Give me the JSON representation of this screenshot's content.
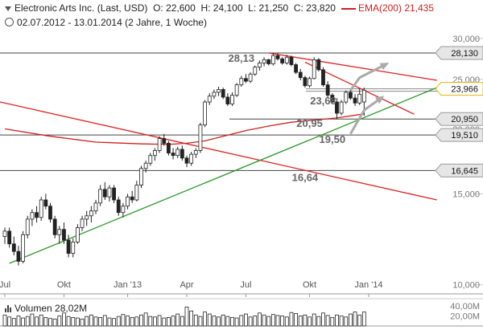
{
  "header": {
    "instrument": "Electronic Arts Inc. (Last, USD)",
    "open": "O: 22,600",
    "high": "H: 24,100",
    "low": "L: 21,250",
    "close": "C: 23,820",
    "ema_label": "EMA(200)",
    "ema_value": "21,435",
    "range": "02.07.2012 - 13.01.2014 (2 Jahre, 1 Woche)"
  },
  "volume": {
    "label": "Volumen",
    "value": "28,02M"
  },
  "chart_data": {
    "type": "candlestick",
    "y_scale": "log",
    "ylim": [
      9.6,
      32.0
    ],
    "y_ticks": [
      {
        "value": 10,
        "label": "10,000"
      },
      {
        "value": 15,
        "label": "15,000"
      },
      {
        "value": 20,
        "label": "20,000"
      },
      {
        "value": 25,
        "label": "25,000"
      },
      {
        "value": 30,
        "label": "30,000"
      }
    ],
    "x_ticks": [
      {
        "label": "Jul",
        "i": 0
      },
      {
        "label": "Okt",
        "i": 13
      },
      {
        "label": "Jan '13",
        "i": 27
      },
      {
        "label": "Apr",
        "i": 40
      },
      {
        "label": "Jul",
        "i": 53
      },
      {
        "label": "Okt",
        "i": 67
      },
      {
        "label": "Jan '14",
        "i": 80
      }
    ],
    "candles": [
      [
        12.4,
        12.9,
        12.0,
        12.7
      ],
      [
        12.7,
        12.9,
        11.8,
        12.0
      ],
      [
        12.0,
        12.4,
        11.4,
        11.6
      ],
      [
        11.6,
        11.9,
        10.9,
        11.1
      ],
      [
        11.1,
        12.7,
        11.0,
        12.5
      ],
      [
        12.5,
        13.6,
        12.3,
        13.4
      ],
      [
        13.4,
        14.0,
        13.0,
        13.8
      ],
      [
        13.8,
        14.2,
        13.2,
        13.5
      ],
      [
        13.5,
        14.8,
        13.3,
        14.6
      ],
      [
        14.6,
        15.0,
        14.0,
        14.2
      ],
      [
        14.2,
        14.4,
        13.2,
        13.4
      ],
      [
        13.4,
        13.6,
        12.3,
        12.5
      ],
      [
        12.5,
        13.0,
        12.0,
        12.8
      ],
      [
        12.8,
        13.2,
        12.0,
        12.2
      ],
      [
        12.2,
        12.5,
        11.3,
        11.5
      ],
      [
        11.5,
        12.3,
        11.3,
        12.1
      ],
      [
        12.1,
        13.1,
        12.0,
        12.9
      ],
      [
        12.9,
        13.6,
        12.7,
        13.4
      ],
      [
        13.4,
        13.9,
        13.0,
        13.6
      ],
      [
        13.6,
        14.2,
        13.2,
        13.9
      ],
      [
        13.9,
        14.6,
        13.7,
        14.4
      ],
      [
        14.4,
        15.6,
        14.2,
        15.3
      ],
      [
        15.3,
        15.8,
        14.6,
        14.8
      ],
      [
        14.8,
        15.6,
        14.5,
        15.4
      ],
      [
        15.4,
        15.6,
        14.4,
        14.6
      ],
      [
        14.6,
        14.8,
        13.6,
        13.8
      ],
      [
        13.8,
        14.4,
        13.5,
        14.2
      ],
      [
        14.2,
        15.0,
        14.0,
        14.8
      ],
      [
        14.8,
        15.2,
        14.4,
        14.6
      ],
      [
        14.6,
        15.9,
        14.5,
        15.6
      ],
      [
        15.6,
        17.0,
        15.4,
        16.8
      ],
      [
        16.8,
        17.4,
        16.5,
        17.2
      ],
      [
        17.2,
        18.0,
        17.0,
        17.8
      ],
      [
        17.8,
        18.4,
        17.4,
        18.2
      ],
      [
        18.2,
        19.4,
        18.0,
        19.2
      ],
      [
        19.2,
        19.6,
        18.6,
        18.8
      ],
      [
        18.8,
        19.0,
        17.8,
        18.0
      ],
      [
        18.0,
        18.4,
        17.5,
        17.8
      ],
      [
        17.8,
        18.5,
        17.6,
        18.3
      ],
      [
        18.3,
        18.6,
        17.4,
        17.6
      ],
      [
        17.6,
        17.8,
        16.9,
        17.2
      ],
      [
        17.2,
        18.1,
        17.0,
        17.9
      ],
      [
        17.9,
        18.4,
        17.6,
        18.2
      ],
      [
        18.2,
        20.6,
        18.0,
        20.4
      ],
      [
        20.4,
        22.8,
        20.2,
        22.6
      ],
      [
        22.6,
        23.5,
        22.3,
        23.2
      ],
      [
        23.2,
        23.9,
        22.9,
        23.6
      ],
      [
        23.6,
        24.2,
        23.2,
        23.9
      ],
      [
        23.9,
        24.1,
        22.9,
        23.1
      ],
      [
        23.1,
        23.5,
        22.2,
        22.4
      ],
      [
        22.4,
        23.6,
        22.2,
        23.3
      ],
      [
        23.3,
        24.6,
        23.1,
        24.4
      ],
      [
        24.4,
        25.4,
        24.2,
        25.1
      ],
      [
        25.1,
        25.6,
        24.6,
        24.8
      ],
      [
        24.8,
        25.8,
        24.6,
        25.6
      ],
      [
        25.6,
        26.6,
        25.4,
        26.4
      ],
      [
        26.4,
        27.2,
        26.0,
        26.9
      ],
      [
        26.9,
        27.6,
        26.5,
        27.3
      ],
      [
        27.3,
        27.4,
        26.6,
        26.8
      ],
      [
        26.8,
        28.1,
        26.6,
        27.8
      ],
      [
        27.8,
        28.1,
        27.2,
        27.4
      ],
      [
        27.4,
        27.6,
        26.7,
        26.9
      ],
      [
        26.9,
        27.9,
        26.7,
        27.6
      ],
      [
        27.6,
        27.8,
        26.5,
        26.7
      ],
      [
        26.7,
        26.9,
        25.6,
        25.8
      ],
      [
        25.8,
        26.2,
        24.9,
        25.2
      ],
      [
        25.2,
        25.4,
        24.1,
        24.3
      ],
      [
        24.3,
        25.3,
        24.1,
        25.1
      ],
      [
        25.1,
        27.6,
        25.0,
        27.3
      ],
      [
        27.3,
        27.5,
        25.9,
        26.1
      ],
      [
        26.1,
        26.4,
        24.2,
        24.4
      ],
      [
        24.4,
        24.8,
        23.0,
        23.3
      ],
      [
        23.3,
        23.5,
        22.4,
        22.6
      ],
      [
        22.6,
        23.0,
        20.95,
        21.5
      ],
      [
        21.5,
        22.8,
        21.3,
        22.6
      ],
      [
        22.6,
        23.8,
        22.4,
        23.6
      ],
      [
        23.6,
        24.0,
        22.8,
        23.0
      ],
      [
        23.0,
        23.4,
        22.2,
        22.5
      ],
      [
        22.5,
        24.0,
        22.3,
        23.4
      ],
      [
        22.6,
        24.1,
        21.25,
        23.82
      ]
    ],
    "ema200": [
      [
        0,
        20.05
      ],
      [
        10,
        19.4
      ],
      [
        20,
        18.9
      ],
      [
        30,
        18.75
      ],
      [
        36,
        18.7
      ],
      [
        40,
        18.8
      ],
      [
        44,
        19.0
      ],
      [
        48,
        19.4
      ],
      [
        53,
        19.9
      ],
      [
        58,
        20.3
      ],
      [
        63,
        20.65
      ],
      [
        68,
        20.85
      ],
      [
        73,
        21.05
      ],
      [
        79,
        21.435
      ]
    ],
    "trendlines": [
      {
        "name": "downtrend-long",
        "color": "#e02020",
        "points": [
          [
            -2,
            22.7
          ],
          [
            95,
            14.6
          ]
        ]
      },
      {
        "name": "uptrend-support",
        "color": "#2a9a2a",
        "points": [
          [
            1,
            11.0
          ],
          [
            95,
            24.1
          ]
        ]
      },
      {
        "name": "channel-upper",
        "color": "#e02020",
        "points": [
          [
            58,
            28.13
          ],
          [
            95,
            24.9
          ]
        ]
      },
      {
        "name": "channel-lower",
        "color": "#e02020",
        "points": [
          [
            66,
            27.0
          ],
          [
            90,
            21.4
          ]
        ]
      }
    ],
    "horizontal_levels": [
      {
        "value": 28.13,
        "label": "28,130",
        "color": "#333333"
      },
      {
        "value": 23.966,
        "label": "23,966",
        "color": "#e0b800"
      },
      {
        "value": 20.95,
        "label": "20,950",
        "color": "#333333"
      },
      {
        "value": 19.51,
        "label": "19,510",
        "color": "#333333"
      },
      {
        "value": 16.645,
        "label": "16,645",
        "color": "#333333"
      }
    ],
    "annotations": [
      {
        "text": "28,13",
        "i": 52,
        "value": 28.13
      },
      {
        "text": "23,68",
        "i": 70,
        "value": 23.68
      },
      {
        "text": "20,95",
        "i": 67,
        "value": 20.95
      },
      {
        "text": "19,50",
        "i": 72,
        "value": 19.5
      },
      {
        "text": "16,64",
        "i": 66,
        "value": 16.64
      }
    ],
    "arrows": [
      {
        "name": "arrow-up-1",
        "points": [
          [
            76,
            23.8
          ],
          [
            78,
            25.2
          ],
          [
            84,
            26.8
          ]
        ]
      },
      {
        "name": "arrow-up-2",
        "points": [
          [
            76,
            19.6
          ],
          [
            79,
            21.8
          ],
          [
            83,
            23.1
          ]
        ]
      }
    ],
    "volume": {
      "ylim": [
        0,
        45
      ],
      "ticks": [
        {
          "value": 20,
          "label": "20,00M"
        },
        {
          "value": 40,
          "label": "40,00M"
        }
      ],
      "values": [
        22,
        18,
        15,
        20,
        16,
        19,
        24,
        18,
        22,
        17,
        15,
        14,
        20,
        26,
        19,
        17,
        16,
        14,
        19,
        22,
        18,
        17,
        21,
        16,
        15,
        19,
        23,
        20,
        17,
        18,
        22,
        26,
        19,
        18,
        21,
        16,
        17,
        20,
        24,
        19,
        38,
        30,
        22,
        19,
        28,
        24,
        20,
        18,
        22,
        19,
        17,
        16,
        21,
        24,
        18,
        20,
        26,
        22,
        19,
        23,
        21,
        20,
        18,
        27,
        25,
        20,
        22,
        18,
        24,
        19,
        26,
        21,
        17,
        22,
        20,
        18,
        24,
        28,
        22,
        28
      ]
    }
  }
}
